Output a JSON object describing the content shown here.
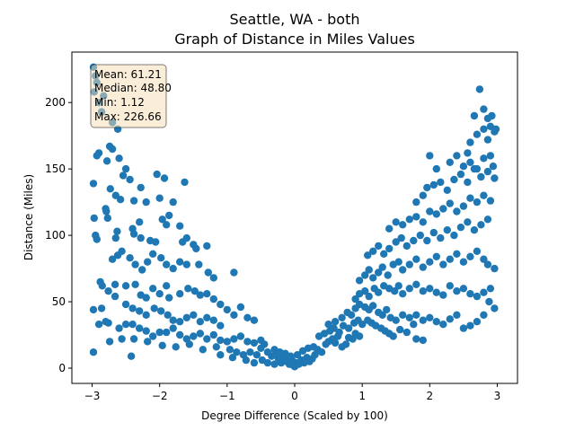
{
  "chart_data": {
    "type": "scatter",
    "title_line1": "Seattle, WA - both",
    "title_line2": "Graph of Distance in Miles Values",
    "xlabel": "Degree Difference (Scaled by 100)",
    "ylabel": "Distance (Miles)",
    "xlim": [
      -3.3,
      3.3
    ],
    "ylim": [
      -11.5,
      238
    ],
    "xticks": [
      -3,
      -2,
      -1,
      0,
      1,
      2,
      3
    ],
    "yticks": [
      0,
      50,
      100,
      150,
      200
    ],
    "grid": false,
    "marker_color": "#1f77b4",
    "stats": {
      "mean": "Mean: 61.21",
      "median": "Median: 48.80",
      "min": "Min: 1.12",
      "max": "Max: 226.66"
    },
    "points": [
      [
        -2.98,
        226.66
      ],
      [
        -2.95,
        220
      ],
      [
        -2.97,
        208
      ],
      [
        -2.9,
        200
      ],
      [
        -2.86,
        193
      ],
      [
        -2.83,
        205
      ],
      [
        -2.93,
        215
      ],
      [
        -2.7,
        185
      ],
      [
        -2.62,
        180
      ],
      [
        -2.9,
        162
      ],
      [
        -2.93,
        160
      ],
      [
        -2.74,
        167
      ],
      [
        -2.7,
        165
      ],
      [
        -2.78,
        156
      ],
      [
        -2.6,
        158
      ],
      [
        -2.5,
        150
      ],
      [
        -2.44,
        142
      ],
      [
        -2.54,
        145
      ],
      [
        -2.28,
        136
      ],
      [
        -2.04,
        146
      ],
      [
        -1.93,
        143
      ],
      [
        -1.63,
        140
      ],
      [
        -2.98,
        139
      ],
      [
        -2.8,
        120
      ],
      [
        -2.73,
        135
      ],
      [
        -2.65,
        130
      ],
      [
        -2.58,
        127
      ],
      [
        -2.38,
        126
      ],
      [
        -2.2,
        125
      ],
      [
        -2.0,
        128
      ],
      [
        -1.8,
        125
      ],
      [
        -2.3,
        110
      ],
      [
        -2.4,
        105
      ],
      [
        -1.9,
        108
      ],
      [
        -2.97,
        113
      ],
      [
        -2.95,
        100
      ],
      [
        -2.93,
        97
      ],
      [
        -2.79,
        118
      ],
      [
        -2.77,
        113
      ],
      [
        -2.63,
        103
      ],
      [
        -2.65,
        98
      ],
      [
        -2.38,
        101
      ],
      [
        -2.28,
        98
      ],
      [
        -2.14,
        96
      ],
      [
        -2.06,
        95
      ],
      [
        -1.96,
        112
      ],
      [
        -1.86,
        115
      ],
      [
        -1.7,
        107
      ],
      [
        -1.66,
        95
      ],
      [
        -1.6,
        98
      ],
      [
        -1.5,
        93
      ],
      [
        -1.46,
        90
      ],
      [
        -1.3,
        92
      ],
      [
        -2.7,
        82
      ],
      [
        -2.62,
        85
      ],
      [
        -2.56,
        88
      ],
      [
        -2.44,
        83
      ],
      [
        -2.36,
        78
      ],
      [
        -2.26,
        74
      ],
      [
        -2.18,
        80
      ],
      [
        -2.1,
        86
      ],
      [
        -1.98,
        83
      ],
      [
        -1.9,
        78
      ],
      [
        -1.8,
        75
      ],
      [
        -1.7,
        80
      ],
      [
        -1.6,
        78
      ],
      [
        -1.42,
        78
      ],
      [
        -1.28,
        72
      ],
      [
        -1.2,
        68
      ],
      [
        -0.9,
        72
      ],
      [
        -2.88,
        65
      ],
      [
        -2.85,
        62
      ],
      [
        -2.76,
        58
      ],
      [
        -2.66,
        63
      ],
      [
        -2.5,
        62
      ],
      [
        -2.36,
        63
      ],
      [
        -2.28,
        55
      ],
      [
        -2.2,
        53
      ],
      [
        -2.1,
        60
      ],
      [
        -2.0,
        56
      ],
      [
        -1.9,
        62
      ],
      [
        -1.86,
        53
      ],
      [
        -1.7,
        56
      ],
      [
        -1.58,
        60
      ],
      [
        -1.48,
        58
      ],
      [
        -1.4,
        55
      ],
      [
        -1.3,
        56
      ],
      [
        -1.2,
        52
      ],
      [
        -1.1,
        48
      ],
      [
        -2.66,
        54
      ],
      [
        -2.5,
        48
      ],
      [
        -2.4,
        45
      ],
      [
        -2.3,
        43
      ],
      [
        -2.2,
        40
      ],
      [
        -2.08,
        45
      ],
      [
        -1.98,
        43
      ],
      [
        -1.88,
        40
      ],
      [
        -1.8,
        36
      ],
      [
        -1.7,
        35
      ],
      [
        -1.6,
        38
      ],
      [
        -1.5,
        40
      ],
      [
        -1.4,
        35
      ],
      [
        -1.3,
        38
      ],
      [
        -1.2,
        36
      ],
      [
        -1.1,
        32
      ],
      [
        -1.0,
        44
      ],
      [
        -0.9,
        40
      ],
      [
        -0.8,
        46
      ],
      [
        -0.7,
        38
      ],
      [
        -0.6,
        36
      ],
      [
        -2.98,
        44
      ],
      [
        -2.86,
        45
      ],
      [
        -2.8,
        35
      ],
      [
        -2.9,
        33
      ],
      [
        -2.76,
        34
      ],
      [
        -2.6,
        30
      ],
      [
        -2.5,
        33
      ],
      [
        -2.4,
        33
      ],
      [
        -2.3,
        30
      ],
      [
        -2.2,
        28
      ],
      [
        -2.1,
        24
      ],
      [
        -2.0,
        27
      ],
      [
        -1.9,
        27
      ],
      [
        -1.8,
        30
      ],
      [
        -1.7,
        25
      ],
      [
        -1.6,
        22
      ],
      [
        -1.5,
        24
      ],
      [
        -1.4,
        26
      ],
      [
        -1.3,
        22
      ],
      [
        -1.2,
        25
      ],
      [
        -1.1,
        21
      ],
      [
        -1.0,
        20
      ],
      [
        -0.9,
        22
      ],
      [
        -0.8,
        24
      ],
      [
        -0.7,
        20
      ],
      [
        -0.6,
        19
      ],
      [
        -0.5,
        21
      ],
      [
        -0.45,
        18
      ],
      [
        -2.74,
        20
      ],
      [
        -2.56,
        22
      ],
      [
        -2.38,
        22
      ],
      [
        -2.18,
        20
      ],
      [
        -1.96,
        17
      ],
      [
        -1.76,
        16
      ],
      [
        -1.56,
        18
      ],
      [
        -1.36,
        14
      ],
      [
        -1.16,
        16
      ],
      [
        -0.96,
        14
      ],
      [
        -0.86,
        12
      ],
      [
        -0.76,
        10
      ],
      [
        -0.66,
        12
      ],
      [
        -0.56,
        10
      ],
      [
        -0.5,
        15
      ],
      [
        -0.4,
        12
      ],
      [
        -0.34,
        9
      ],
      [
        -0.3,
        14
      ],
      [
        -2.98,
        12
      ],
      [
        -2.42,
        9
      ],
      [
        -1.1,
        10
      ],
      [
        -0.92,
        8
      ],
      [
        -0.72,
        6
      ],
      [
        -0.6,
        4
      ],
      [
        -0.48,
        6
      ],
      [
        -0.4,
        4
      ],
      [
        -0.3,
        3
      ],
      [
        -0.24,
        7
      ],
      [
        -0.2,
        4
      ],
      [
        -0.16,
        8
      ],
      [
        -0.12,
        5
      ],
      [
        -0.08,
        3
      ],
      [
        -0.04,
        6
      ],
      [
        -0.02,
        2
      ],
      [
        0.0,
        1.12
      ],
      [
        0.02,
        4
      ],
      [
        0.06,
        3
      ],
      [
        0.1,
        6
      ],
      [
        0.14,
        4
      ],
      [
        0.18,
        8
      ],
      [
        0.22,
        5
      ],
      [
        0.26,
        7
      ],
      [
        0.3,
        10
      ],
      [
        -0.28,
        10
      ],
      [
        -0.22,
        12
      ],
      [
        -0.14,
        11
      ],
      [
        -0.06,
        9
      ],
      [
        0.04,
        10
      ],
      [
        0.12,
        13
      ],
      [
        0.2,
        15
      ],
      [
        0.28,
        16
      ],
      [
        0.34,
        14
      ],
      [
        0.4,
        12
      ],
      [
        0.46,
        18
      ],
      [
        0.5,
        20
      ],
      [
        0.56,
        22
      ],
      [
        0.6,
        19
      ],
      [
        0.64,
        24
      ],
      [
        0.7,
        16
      ],
      [
        0.76,
        18
      ],
      [
        0.8,
        23
      ],
      [
        0.86,
        22
      ],
      [
        0.9,
        26
      ],
      [
        0.96,
        24
      ],
      [
        0.36,
        24
      ],
      [
        0.44,
        26
      ],
      [
        0.52,
        28
      ],
      [
        0.58,
        30
      ],
      [
        0.66,
        27
      ],
      [
        0.72,
        32
      ],
      [
        0.8,
        30
      ],
      [
        0.88,
        34
      ],
      [
        0.94,
        36
      ],
      [
        1.0,
        33
      ],
      [
        1.08,
        36
      ],
      [
        1.14,
        34
      ],
      [
        1.2,
        32
      ],
      [
        1.28,
        30
      ],
      [
        1.34,
        28
      ],
      [
        1.4,
        26
      ],
      [
        1.46,
        24
      ],
      [
        1.56,
        29
      ],
      [
        1.66,
        27
      ],
      [
        1.76,
        33
      ],
      [
        1.8,
        22
      ],
      [
        1.9,
        21
      ],
      [
        0.5,
        33
      ],
      [
        0.6,
        35
      ],
      [
        0.7,
        38
      ],
      [
        0.78,
        42
      ],
      [
        0.84,
        40
      ],
      [
        0.9,
        45
      ],
      [
        0.96,
        48
      ],
      [
        1.04,
        46
      ],
      [
        1.1,
        44
      ],
      [
        1.16,
        47
      ],
      [
        1.24,
        42
      ],
      [
        1.3,
        40
      ],
      [
        1.36,
        44
      ],
      [
        1.42,
        38
      ],
      [
        1.5,
        36
      ],
      [
        1.6,
        40
      ],
      [
        1.7,
        38
      ],
      [
        1.8,
        40
      ],
      [
        1.9,
        36
      ],
      [
        2.0,
        38
      ],
      [
        2.1,
        35
      ],
      [
        2.2,
        33
      ],
      [
        2.3,
        37
      ],
      [
        2.4,
        40
      ],
      [
        2.5,
        30
      ],
      [
        2.6,
        32
      ],
      [
        2.7,
        35
      ],
      [
        2.8,
        40
      ],
      [
        0.9,
        52
      ],
      [
        0.96,
        56
      ],
      [
        1.04,
        58
      ],
      [
        1.1,
        54
      ],
      [
        1.18,
        60
      ],
      [
        1.24,
        57
      ],
      [
        1.32,
        62
      ],
      [
        1.4,
        60
      ],
      [
        1.48,
        58
      ],
      [
        1.54,
        62
      ],
      [
        1.6,
        56
      ],
      [
        1.7,
        60
      ],
      [
        1.8,
        63
      ],
      [
        1.9,
        58
      ],
      [
        2.0,
        60
      ],
      [
        2.1,
        57
      ],
      [
        2.2,
        55
      ],
      [
        2.3,
        62
      ],
      [
        2.4,
        58
      ],
      [
        2.5,
        60
      ],
      [
        2.6,
        56
      ],
      [
        2.7,
        54
      ],
      [
        2.8,
        57
      ],
      [
        2.9,
        60
      ],
      [
        2.88,
        50
      ],
      [
        2.96,
        45
      ],
      [
        0.96,
        66
      ],
      [
        1.04,
        70
      ],
      [
        1.1,
        74
      ],
      [
        1.16,
        68
      ],
      [
        1.24,
        72
      ],
      [
        1.3,
        76
      ],
      [
        1.38,
        70
      ],
      [
        1.46,
        78
      ],
      [
        1.54,
        80
      ],
      [
        1.6,
        74
      ],
      [
        1.7,
        78
      ],
      [
        1.8,
        82
      ],
      [
        1.9,
        76
      ],
      [
        2.0,
        80
      ],
      [
        2.1,
        84
      ],
      [
        2.2,
        78
      ],
      [
        2.3,
        82
      ],
      [
        2.4,
        86
      ],
      [
        2.5,
        80
      ],
      [
        2.6,
        84
      ],
      [
        2.7,
        88
      ],
      [
        2.8,
        82
      ],
      [
        2.86,
        78
      ],
      [
        2.96,
        75
      ],
      [
        1.08,
        85
      ],
      [
        1.16,
        88
      ],
      [
        1.24,
        92
      ],
      [
        1.32,
        86
      ],
      [
        1.4,
        90
      ],
      [
        1.5,
        95
      ],
      [
        1.58,
        98
      ],
      [
        1.66,
        92
      ],
      [
        1.76,
        96
      ],
      [
        1.86,
        100
      ],
      [
        1.96,
        96
      ],
      [
        2.06,
        102
      ],
      [
        2.16,
        98
      ],
      [
        2.26,
        104
      ],
      [
        2.36,
        100
      ],
      [
        2.46,
        106
      ],
      [
        2.56,
        110
      ],
      [
        2.66,
        104
      ],
      [
        2.76,
        108
      ],
      [
        2.86,
        112
      ],
      [
        1.4,
        105
      ],
      [
        1.5,
        110
      ],
      [
        1.6,
        108
      ],
      [
        1.7,
        112
      ],
      [
        1.8,
        114
      ],
      [
        1.9,
        110
      ],
      [
        2.0,
        118
      ],
      [
        2.1,
        116
      ],
      [
        2.2,
        120
      ],
      [
        2.3,
        124
      ],
      [
        2.4,
        118
      ],
      [
        2.5,
        122
      ],
      [
        2.6,
        128
      ],
      [
        2.7,
        125
      ],
      [
        2.8,
        130
      ],
      [
        2.9,
        126
      ],
      [
        1.8,
        125
      ],
      [
        1.9,
        130
      ],
      [
        1.96,
        136
      ],
      [
        2.06,
        138
      ],
      [
        2.16,
        140
      ],
      [
        2.26,
        134
      ],
      [
        2.36,
        142
      ],
      [
        2.46,
        146
      ],
      [
        2.56,
        140
      ],
      [
        2.66,
        150
      ],
      [
        2.76,
        144
      ],
      [
        2.86,
        148
      ],
      [
        2.96,
        143
      ],
      [
        2.0,
        160
      ],
      [
        2.1,
        150
      ],
      [
        2.3,
        155
      ],
      [
        2.4,
        160
      ],
      [
        2.5,
        152
      ],
      [
        2.56,
        162
      ],
      [
        2.6,
        155
      ],
      [
        2.7,
        150
      ],
      [
        2.8,
        158
      ],
      [
        2.9,
        160
      ],
      [
        2.94,
        152
      ],
      [
        2.6,
        170
      ],
      [
        2.7,
        176
      ],
      [
        2.8,
        180
      ],
      [
        2.86,
        172
      ],
      [
        2.9,
        182
      ],
      [
        2.96,
        178
      ],
      [
        2.66,
        190
      ],
      [
        2.8,
        195
      ],
      [
        2.92,
        190
      ],
      [
        2.74,
        210
      ],
      [
        2.86,
        188
      ],
      [
        2.98,
        180
      ]
    ]
  }
}
